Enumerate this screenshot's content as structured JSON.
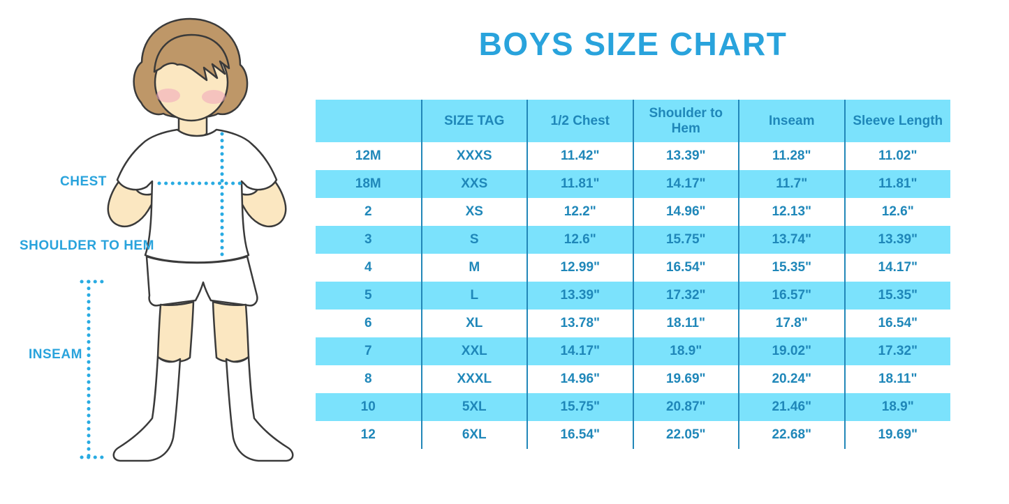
{
  "page": {
    "title": "BOYS SIZE CHART"
  },
  "colors": {
    "title_blue": "#29A3DC",
    "table_text_blue": "#1F87B9",
    "band_cyan": "#7BE2FC",
    "divider_blue": "#2287B8",
    "dotted_line_blue": "#29ABE2",
    "skin": "#FBE7C1",
    "hair_brown": "#BE9768",
    "blush_pink": "#F2ACBD"
  },
  "figure": {
    "labels": {
      "chest": "CHEST",
      "shoulder_to_hem": "SHOULDER TO HEM",
      "inseam": "INSEAM"
    }
  },
  "chart_data": {
    "type": "table",
    "title": "BOYS SIZE CHART",
    "columns": [
      "",
      "SIZE TAG",
      "1/2 Chest",
      "Shoulder to Hem",
      "Inseam",
      "Sleeve Length"
    ],
    "rows": [
      [
        "12M",
        "XXXS",
        "11.42\"",
        "13.39\"",
        "11.28\"",
        "11.02\""
      ],
      [
        "18M",
        "XXS",
        "11.81\"",
        "14.17\"",
        "11.7\"",
        "11.81\""
      ],
      [
        "2",
        "XS",
        "12.2\"",
        "14.96\"",
        "12.13\"",
        "12.6\""
      ],
      [
        "3",
        "S",
        "12.6\"",
        "15.75\"",
        "13.74\"",
        "13.39\""
      ],
      [
        "4",
        "M",
        "12.99\"",
        "16.54\"",
        "15.35\"",
        "14.17\""
      ],
      [
        "5",
        "L",
        "13.39\"",
        "17.32\"",
        "16.57\"",
        "15.35\""
      ],
      [
        "6",
        "XL",
        "13.78\"",
        "18.11\"",
        "17.8\"",
        "16.54\""
      ],
      [
        "7",
        "XXL",
        "14.17\"",
        "18.9\"",
        "19.02\"",
        "17.32\""
      ],
      [
        "8",
        "XXXL",
        "14.96\"",
        "19.69\"",
        "20.24\"",
        "18.11\""
      ],
      [
        "10",
        "5XL",
        "15.75\"",
        "20.87\"",
        "21.46\"",
        "18.9\""
      ],
      [
        "12",
        "6XL",
        "16.54\"",
        "22.05\"",
        "22.68\"",
        "19.69\""
      ]
    ]
  }
}
